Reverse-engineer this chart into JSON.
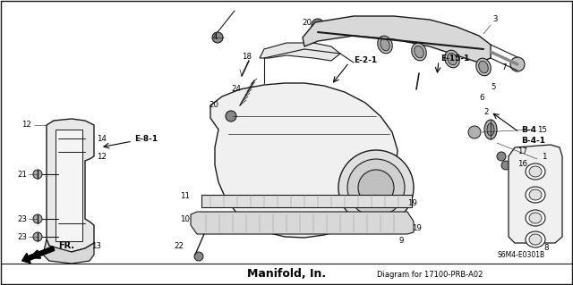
{
  "title": "Manifold, In.",
  "diagram_ref": "Diagram for 17100-PRB-A02",
  "background_color": "#ffffff",
  "border_color": "#000000",
  "text_color": "#000000",
  "figsize": [
    6.4,
    3.19
  ],
  "dpi": 100,
  "diagram_code": "S6M4-E0301B",
  "line_color": "#1a1a1a",
  "gray_fill": "#c8c8c8",
  "light_gray": "#e8e8e8"
}
